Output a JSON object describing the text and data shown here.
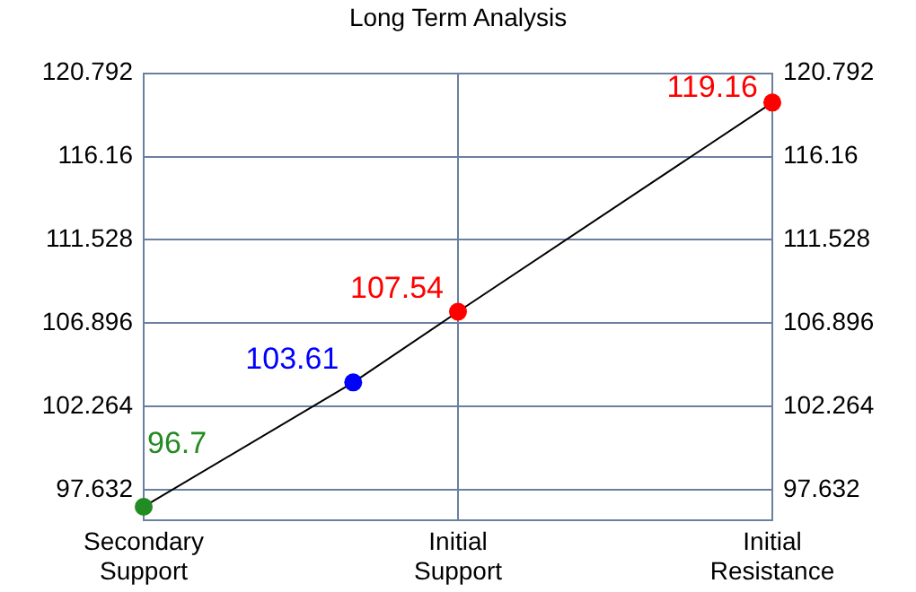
{
  "chart_data": {
    "type": "line",
    "title": "Long Term Analysis",
    "categories": [
      "Secondary Support",
      null,
      null,
      "Initial Support",
      null,
      null,
      "Initial Resistance"
    ],
    "ylim": [
      95.95,
      120.792
    ],
    "yticks": [
      97.632,
      102.264,
      106.896,
      111.528,
      116.16,
      120.792
    ],
    "y2lim": [
      95.95,
      120.792
    ],
    "y2ticks": [
      97.632,
      102.264,
      106.896,
      111.528,
      116.16,
      120.792
    ],
    "series": [
      {
        "color": "#000000",
        "colors": [
          "#228b22",
          null,
          "#0000ff",
          "#ff0000",
          null,
          null,
          "#ff0000"
        ],
        "values": [
          96.7,
          null,
          103.61,
          107.54,
          null,
          null,
          119.16
        ]
      }
    ],
    "data_labels": true,
    "grid": true,
    "marker": "circle",
    "legend": false
  }
}
